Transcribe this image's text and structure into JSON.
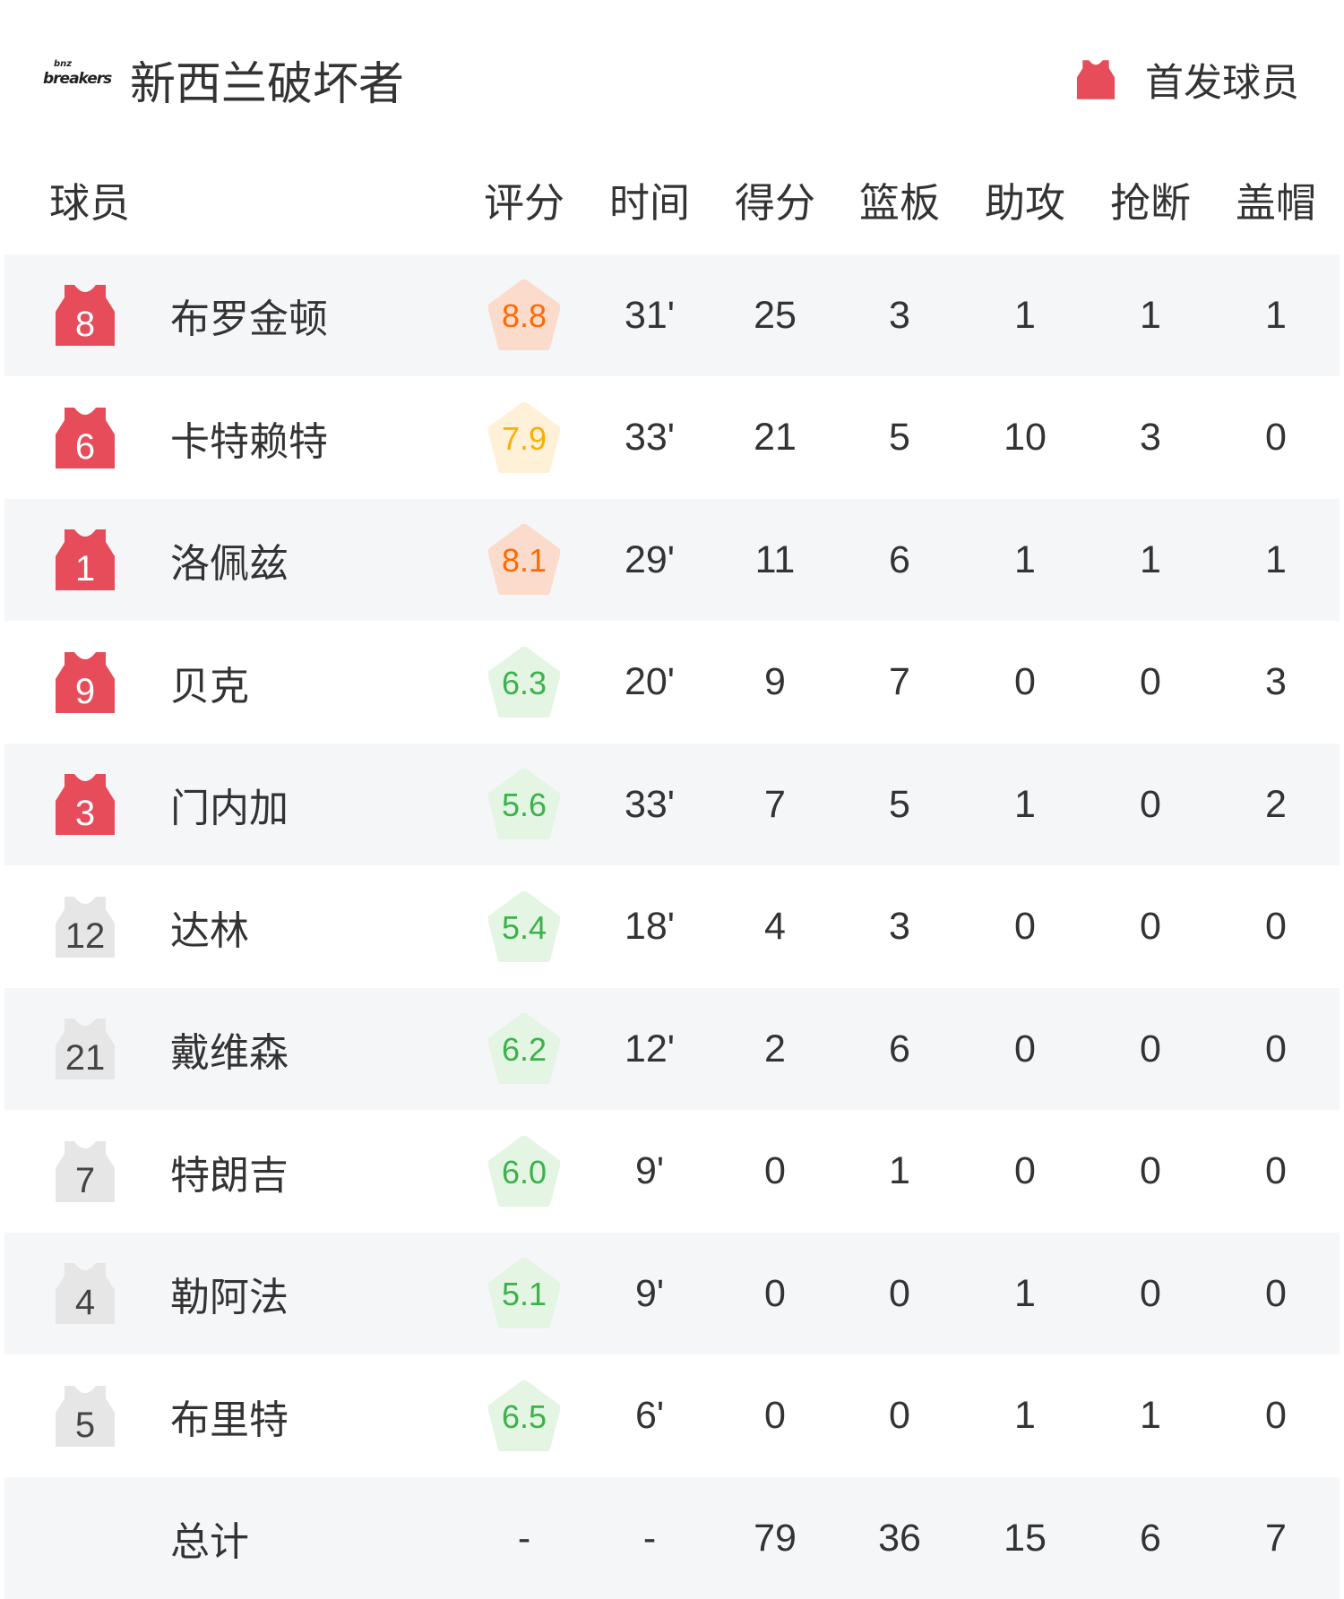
{
  "team": {
    "logo_text_small": "bnz",
    "logo_text": "breakers",
    "name": "新西兰破坏者"
  },
  "legend": {
    "label": "首发球员"
  },
  "colors": {
    "starter": "#e64c5a",
    "bench": "#e6e6e6",
    "rating_high_text": "#ff6a00",
    "rating_high_bg": "#fbdccc",
    "rating_mid_text": "#ffae00",
    "rating_mid_bg": "#fff1d8",
    "rating_low_text": "#3bb24a",
    "rating_low_bg": "#e4f5e4"
  },
  "headers": [
    "球员",
    "评分",
    "时间",
    "得分",
    "篮板",
    "助攻",
    "抢断",
    "盖帽"
  ],
  "players": [
    {
      "number": "8",
      "name": "布罗金顿",
      "starter": true,
      "rating": "8.8",
      "tier": "high",
      "time": "31'",
      "pts": "25",
      "reb": "3",
      "ast": "1",
      "stl": "1",
      "blk": "1"
    },
    {
      "number": "6",
      "name": "卡特赖特",
      "starter": true,
      "rating": "7.9",
      "tier": "mid",
      "time": "33'",
      "pts": "21",
      "reb": "5",
      "ast": "10",
      "stl": "3",
      "blk": "0"
    },
    {
      "number": "1",
      "name": "洛佩兹",
      "starter": true,
      "rating": "8.1",
      "tier": "high",
      "time": "29'",
      "pts": "11",
      "reb": "6",
      "ast": "1",
      "stl": "1",
      "blk": "1"
    },
    {
      "number": "9",
      "name": "贝克",
      "starter": true,
      "rating": "6.3",
      "tier": "low",
      "time": "20'",
      "pts": "9",
      "reb": "7",
      "ast": "0",
      "stl": "0",
      "blk": "3"
    },
    {
      "number": "3",
      "name": "门内加",
      "starter": true,
      "rating": "5.6",
      "tier": "low",
      "time": "33'",
      "pts": "7",
      "reb": "5",
      "ast": "1",
      "stl": "0",
      "blk": "2"
    },
    {
      "number": "12",
      "name": "达林",
      "starter": false,
      "rating": "5.4",
      "tier": "low",
      "time": "18'",
      "pts": "4",
      "reb": "3",
      "ast": "0",
      "stl": "0",
      "blk": "0"
    },
    {
      "number": "21",
      "name": "戴维森",
      "starter": false,
      "rating": "6.2",
      "tier": "low",
      "time": "12'",
      "pts": "2",
      "reb": "6",
      "ast": "0",
      "stl": "0",
      "blk": "0"
    },
    {
      "number": "7",
      "name": "特朗吉",
      "starter": false,
      "rating": "6.0",
      "tier": "low",
      "time": "9'",
      "pts": "0",
      "reb": "1",
      "ast": "0",
      "stl": "0",
      "blk": "0"
    },
    {
      "number": "4",
      "name": "勒阿法",
      "starter": false,
      "rating": "5.1",
      "tier": "low",
      "time": "9'",
      "pts": "0",
      "reb": "0",
      "ast": "1",
      "stl": "0",
      "blk": "0"
    },
    {
      "number": "5",
      "name": "布里特",
      "starter": false,
      "rating": "6.5",
      "tier": "low",
      "time": "6'",
      "pts": "0",
      "reb": "0",
      "ast": "1",
      "stl": "1",
      "blk": "0"
    }
  ],
  "total": {
    "label": "总计",
    "rating": "-",
    "time": "-",
    "pts": "79",
    "reb": "36",
    "ast": "15",
    "stl": "6",
    "blk": "7"
  }
}
